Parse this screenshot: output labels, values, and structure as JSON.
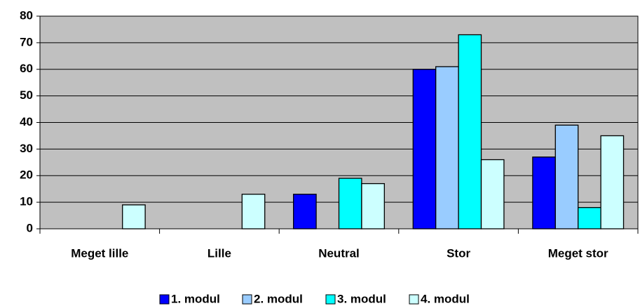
{
  "chart_data": {
    "type": "bar",
    "categories": [
      "Meget lille",
      "Lille",
      "Neutral",
      "Stor",
      "Meget stor"
    ],
    "series": [
      {
        "name": "1. modul",
        "color": "#0000ff",
        "values": [
          0,
          0,
          13,
          60,
          27
        ]
      },
      {
        "name": "2. modul",
        "color": "#99ccff",
        "values": [
          0,
          0,
          0,
          61,
          39
        ]
      },
      {
        "name": "3. modul",
        "color": "#00ffff",
        "values": [
          0,
          0,
          19,
          73,
          8
        ]
      },
      {
        "name": "4. modul",
        "color": "#ccffff",
        "values": [
          9,
          13,
          17,
          26,
          35
        ]
      }
    ],
    "ylim": [
      0,
      80
    ],
    "yticks": [
      0,
      10,
      20,
      30,
      40,
      50,
      60,
      70,
      80
    ],
    "grid": true,
    "legend": "bottom"
  }
}
